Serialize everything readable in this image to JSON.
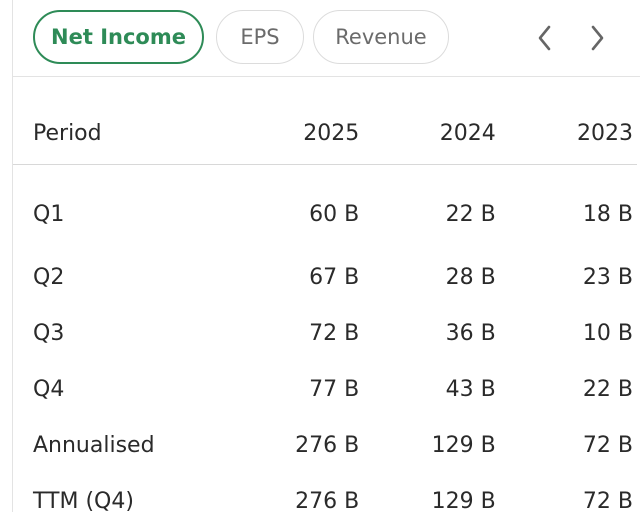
{
  "tabs": [
    {
      "label": "Net Income",
      "active": true
    },
    {
      "label": "EPS",
      "active": false
    },
    {
      "label": "Revenue",
      "active": false
    }
  ],
  "nav": {
    "prev_icon": "chevron-left-icon",
    "next_icon": "chevron-right-icon"
  },
  "table": {
    "headers": [
      "Period",
      "2025",
      "2024",
      "2023"
    ],
    "rows": [
      [
        "Q1",
        "60 B",
        "22 B",
        "18 B"
      ],
      [
        "Q2",
        "67 B",
        "28 B",
        "23 B"
      ],
      [
        "Q3",
        "72 B",
        "36 B",
        "10 B"
      ],
      [
        "Q4",
        "77 B",
        "43 B",
        "22 B"
      ],
      [
        "Annualised",
        "276 B",
        "129 B",
        "72 B"
      ],
      [
        "TTM (Q4)",
        "276 B",
        "129 B",
        "72 B"
      ]
    ]
  },
  "colors": {
    "accent": "#2e8b57",
    "border": "#e3e3e3",
    "muted_text": "#6b6b6b"
  }
}
